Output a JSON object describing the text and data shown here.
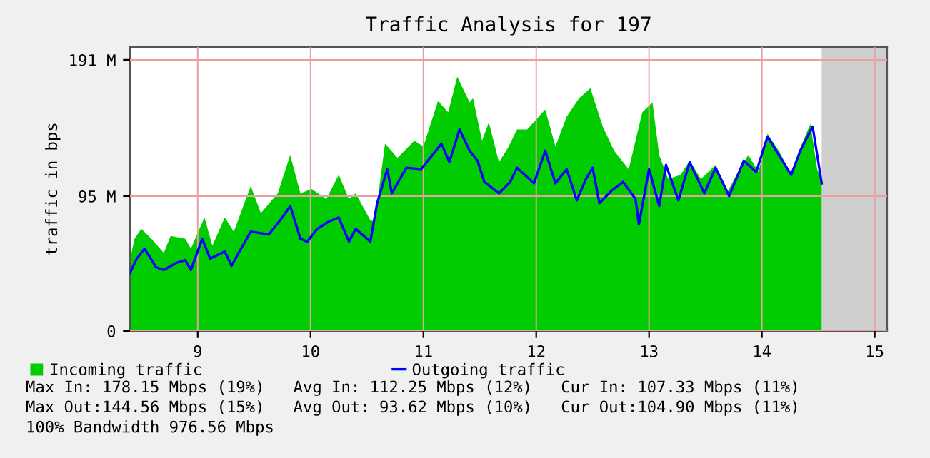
{
  "chart_data": {
    "type": "area",
    "title": "Traffic Analysis for 197",
    "ylabel": "traffic in bps",
    "xlim": [
      8.4,
      15.11
    ],
    "xticks": [
      9,
      10,
      11,
      12,
      13,
      14,
      15
    ],
    "ylim": [
      0,
      200
    ],
    "yticks": [
      {
        "value": 0,
        "label": "0"
      },
      {
        "value": 95,
        "label": "95 M"
      },
      {
        "value": 191,
        "label": "191 M"
      }
    ],
    "grid": true,
    "legend": "bottom",
    "line_style": "solid",
    "series": [
      {
        "name": "Incoming traffic",
        "color": "#00cc00",
        "x": [
          8.4,
          8.44,
          8.5,
          8.59,
          8.7,
          8.76,
          8.89,
          8.94,
          9.06,
          9.13,
          9.24,
          9.32,
          9.47,
          9.56,
          9.71,
          9.82,
          9.91,
          10.01,
          10.14,
          10.25,
          10.34,
          10.4,
          10.53,
          10.57,
          10.66,
          10.77,
          10.92,
          11.0,
          11.13,
          11.22,
          11.3,
          11.41,
          11.44,
          11.52,
          11.58,
          11.67,
          11.75,
          11.83,
          11.92,
          12.08,
          12.17,
          12.27,
          12.38,
          12.48,
          12.59,
          12.69,
          12.82,
          12.94,
          13.03,
          13.09,
          13.17,
          13.28,
          13.36,
          13.46,
          13.59,
          13.69,
          13.8,
          13.88,
          13.97,
          14.05,
          14.15,
          14.26,
          14.34,
          14.43,
          14.49,
          14.53
        ],
        "values": [
          50,
          65,
          72,
          65,
          55,
          67,
          65,
          58,
          80,
          60,
          80,
          70,
          102,
          83,
          97,
          124,
          97,
          100,
          93,
          110,
          93,
          97,
          78,
          77,
          132,
          122,
          134,
          130,
          162,
          154,
          179,
          161,
          164,
          134,
          147,
          119,
          129,
          142,
          142,
          156,
          130,
          151,
          164,
          171,
          144,
          127,
          114,
          154,
          161,
          124,
          107,
          110,
          120,
          107,
          117,
          97,
          114,
          124,
          112,
          139,
          127,
          110,
          129,
          146,
          114,
          107
        ]
      },
      {
        "name": "Outgoing traffic",
        "type": "line",
        "color": "#0000ff",
        "x": [
          8.4,
          8.46,
          8.53,
          8.63,
          8.7,
          8.81,
          8.89,
          8.94,
          9.04,
          9.11,
          9.24,
          9.3,
          9.37,
          9.47,
          9.63,
          9.75,
          9.82,
          9.91,
          9.97,
          10.06,
          10.16,
          10.25,
          10.34,
          10.4,
          10.53,
          10.59,
          10.68,
          10.72,
          10.85,
          10.98,
          11.16,
          11.23,
          11.32,
          11.41,
          11.48,
          11.54,
          11.67,
          11.77,
          11.83,
          11.98,
          12.08,
          12.17,
          12.27,
          12.36,
          12.44,
          12.5,
          12.56,
          12.67,
          12.77,
          12.88,
          12.91,
          13.0,
          13.09,
          13.15,
          13.26,
          13.36,
          13.49,
          13.59,
          13.71,
          13.84,
          13.95,
          14.05,
          14.15,
          14.26,
          14.34,
          14.45,
          14.53
        ],
        "values": [
          41,
          51,
          58,
          45,
          43,
          48,
          50,
          43,
          65,
          51,
          56,
          46,
          56,
          70,
          68,
          80,
          88,
          65,
          63,
          72,
          77,
          80,
          63,
          72,
          63,
          90,
          114,
          97,
          115,
          114,
          132,
          119,
          142,
          127,
          120,
          105,
          97,
          105,
          115,
          104,
          127,
          104,
          114,
          92,
          107,
          115,
          90,
          99,
          105,
          93,
          75,
          114,
          88,
          117,
          92,
          119,
          97,
          115,
          95,
          120,
          112,
          137,
          124,
          110,
          127,
          144,
          104
        ]
      }
    ],
    "bands": [
      {
        "axis": "x",
        "from": 14.53,
        "to": 15.11,
        "color": "#cfcfcf"
      }
    ],
    "annotations": [
      "Max In: 178.15 Mbps (19%)   Avg In: 112.25 Mbps (12%)   Cur In: 107.33 Mbps (11%)",
      "Max Out:144.56 Mbps (15%)   Avg Out: 93.62 Mbps (10%)   Cur Out:104.90 Mbps (11%)",
      "100% Bandwidth 976.56 Mbps"
    ]
  }
}
